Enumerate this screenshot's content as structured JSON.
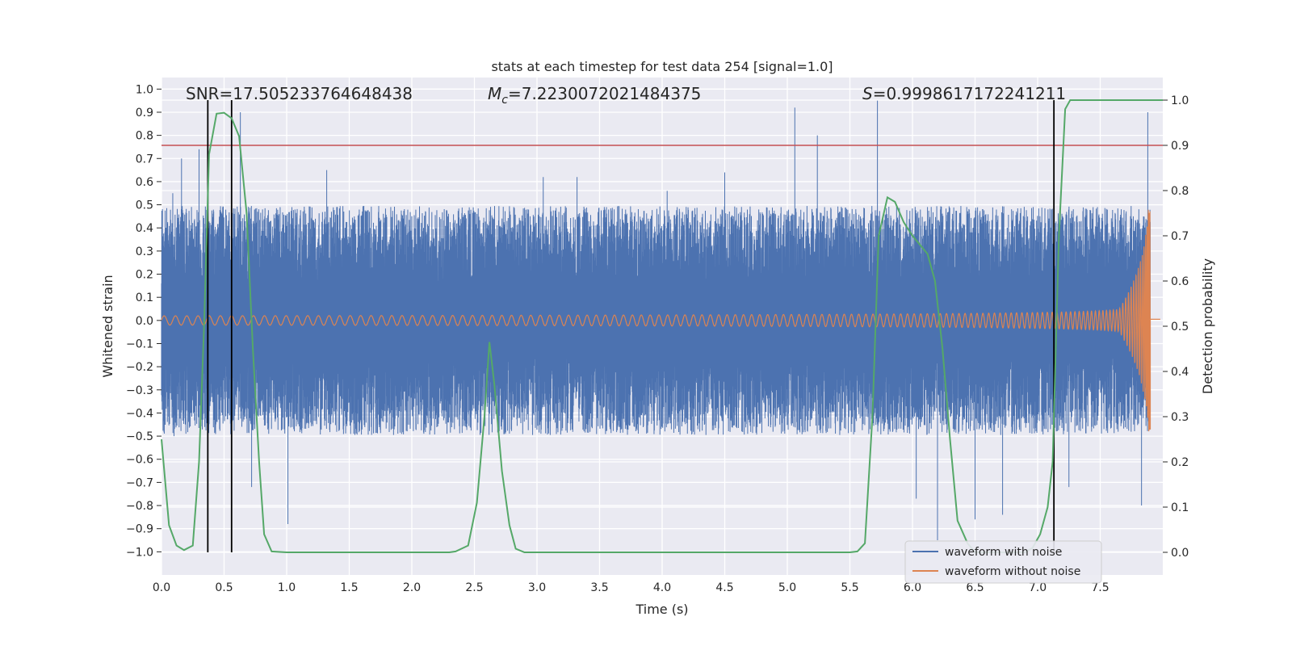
{
  "chart_data": {
    "type": "line",
    "title": "stats at each timestep for test data 254 [signal=1.0]",
    "xlabel": "Time (s)",
    "ylabel": "Whitened strain",
    "y2label": "Detection probability",
    "xlim": [
      0.0,
      8.0
    ],
    "ylim": [
      -1.1,
      1.05
    ],
    "y2lim": [
      -0.05,
      1.05
    ],
    "xticks": [
      0.0,
      0.5,
      1.0,
      1.5,
      2.0,
      2.5,
      3.0,
      3.5,
      4.0,
      4.5,
      5.0,
      5.5,
      6.0,
      6.5,
      7.0,
      7.5
    ],
    "xtick_labels": [
      "0.0",
      "0.5",
      "1.0",
      "1.5",
      "2.0",
      "2.5",
      "3.0",
      "3.5",
      "4.0",
      "4.5",
      "5.0",
      "5.5",
      "6.0",
      "6.5",
      "7.0",
      "7.5"
    ],
    "yticks": [
      1.0,
      0.9,
      0.8,
      0.7,
      0.6,
      0.5,
      0.4,
      0.3,
      0.2,
      0.1,
      0.0,
      -0.1,
      -0.2,
      -0.3,
      -0.4,
      -0.5,
      -0.6,
      -0.7,
      -0.8,
      -0.9,
      -1.0
    ],
    "ytick_labels": [
      "1.0",
      "0.9",
      "0.8",
      "0.7",
      "0.6",
      "0.5",
      "0.4",
      "0.3",
      "0.2",
      "0.1",
      "0.0",
      "−0.1",
      "−0.2",
      "−0.3",
      "−0.4",
      "−0.5",
      "−0.6",
      "−0.7",
      "−0.8",
      "−0.9",
      "−1.0"
    ],
    "y2ticks": [
      1.0,
      0.9,
      0.8,
      0.7,
      0.6,
      0.5,
      0.4,
      0.3,
      0.2,
      0.1,
      0.0
    ],
    "y2tick_labels": [
      "1.0",
      "0.9",
      "0.8",
      "0.7",
      "0.6",
      "0.5",
      "0.4",
      "0.3",
      "0.2",
      "0.1",
      "0.0"
    ],
    "annotations": {
      "snr": "SNR=17.505233764648438",
      "mc_symbol": "M",
      "mc_sub": "c",
      "mc_value": "=7.2230072021484375",
      "s_symbol": "S",
      "s_value": "=0.9998617172241211"
    },
    "threshold": {
      "axis": "y2",
      "value": 0.9
    },
    "trigger_times": [
      0.37,
      0.56,
      7.13
    ],
    "series": [
      {
        "name": "waveform with noise",
        "axis": "y1",
        "kind": "noise",
        "color": "#4c72b0",
        "duration_s": 7.9,
        "envelope_upper_typical": 0.45,
        "envelope_lower_typical": -0.45,
        "spikes": [
          [
            0.09,
            0.55
          ],
          [
            0.1,
            -0.5
          ],
          [
            0.16,
            0.7
          ],
          [
            0.3,
            0.74
          ],
          [
            0.63,
            0.9
          ],
          [
            0.72,
            -0.72
          ],
          [
            1.01,
            -0.88
          ],
          [
            1.32,
            0.65
          ],
          [
            3.05,
            0.62
          ],
          [
            3.32,
            0.62
          ],
          [
            4.04,
            0.56
          ],
          [
            4.5,
            0.64
          ],
          [
            5.06,
            0.92
          ],
          [
            5.24,
            0.8
          ],
          [
            5.72,
            0.95
          ],
          [
            6.03,
            -0.77
          ],
          [
            6.2,
            -0.95
          ],
          [
            6.5,
            -0.86
          ],
          [
            6.72,
            -0.84
          ],
          [
            7.25,
            -0.72
          ],
          [
            7.88,
            0.9
          ],
          [
            7.83,
            -0.8
          ]
        ]
      },
      {
        "name": "waveform without noise",
        "axis": "y1",
        "kind": "chirp",
        "color": "#dd8452",
        "duration_s": 7.9,
        "peak_amplitude": 0.48,
        "start_amplitude": 0.02
      },
      {
        "name": "detection probability",
        "axis": "y2",
        "kind": "line",
        "color": "#55a868",
        "points": [
          [
            0.0,
            0.25
          ],
          [
            0.06,
            0.06
          ],
          [
            0.12,
            0.015
          ],
          [
            0.18,
            0.005
          ],
          [
            0.25,
            0.015
          ],
          [
            0.3,
            0.2
          ],
          [
            0.34,
            0.5
          ],
          [
            0.38,
            0.88
          ],
          [
            0.44,
            0.97
          ],
          [
            0.5,
            0.972
          ],
          [
            0.56,
            0.96
          ],
          [
            0.62,
            0.92
          ],
          [
            0.68,
            0.75
          ],
          [
            0.73,
            0.45
          ],
          [
            0.78,
            0.2
          ],
          [
            0.82,
            0.04
          ],
          [
            0.88,
            0.002
          ],
          [
            1.0,
            0.0
          ],
          [
            2.3,
            0.0
          ],
          [
            2.35,
            0.002
          ],
          [
            2.45,
            0.015
          ],
          [
            2.52,
            0.11
          ],
          [
            2.58,
            0.3
          ],
          [
            2.62,
            0.465
          ],
          [
            2.66,
            0.37
          ],
          [
            2.72,
            0.18
          ],
          [
            2.78,
            0.06
          ],
          [
            2.83,
            0.008
          ],
          [
            2.9,
            0.0
          ],
          [
            5.5,
            0.0
          ],
          [
            5.56,
            0.002
          ],
          [
            5.62,
            0.02
          ],
          [
            5.68,
            0.3
          ],
          [
            5.73,
            0.7
          ],
          [
            5.8,
            0.785
          ],
          [
            5.86,
            0.775
          ],
          [
            5.93,
            0.73
          ],
          [
            6.0,
            0.7
          ],
          [
            6.06,
            0.68
          ],
          [
            6.12,
            0.66
          ],
          [
            6.18,
            0.6
          ],
          [
            6.24,
            0.45
          ],
          [
            6.3,
            0.25
          ],
          [
            6.36,
            0.07
          ],
          [
            6.44,
            0.02
          ],
          [
            6.5,
            0.0
          ],
          [
            6.9,
            0.0
          ],
          [
            6.96,
            0.01
          ],
          [
            7.02,
            0.04
          ],
          [
            7.08,
            0.1
          ],
          [
            7.12,
            0.2
          ],
          [
            7.17,
            0.7
          ],
          [
            7.22,
            0.98
          ],
          [
            7.26,
            1.0
          ],
          [
            8.0,
            1.0
          ]
        ]
      }
    ],
    "legend": {
      "placement": "lower-right",
      "entries": [
        {
          "label": "waveform with noise",
          "color": "#4c72b0"
        },
        {
          "label": "waveform without noise",
          "color": "#dd8452"
        }
      ]
    },
    "grid": true
  }
}
